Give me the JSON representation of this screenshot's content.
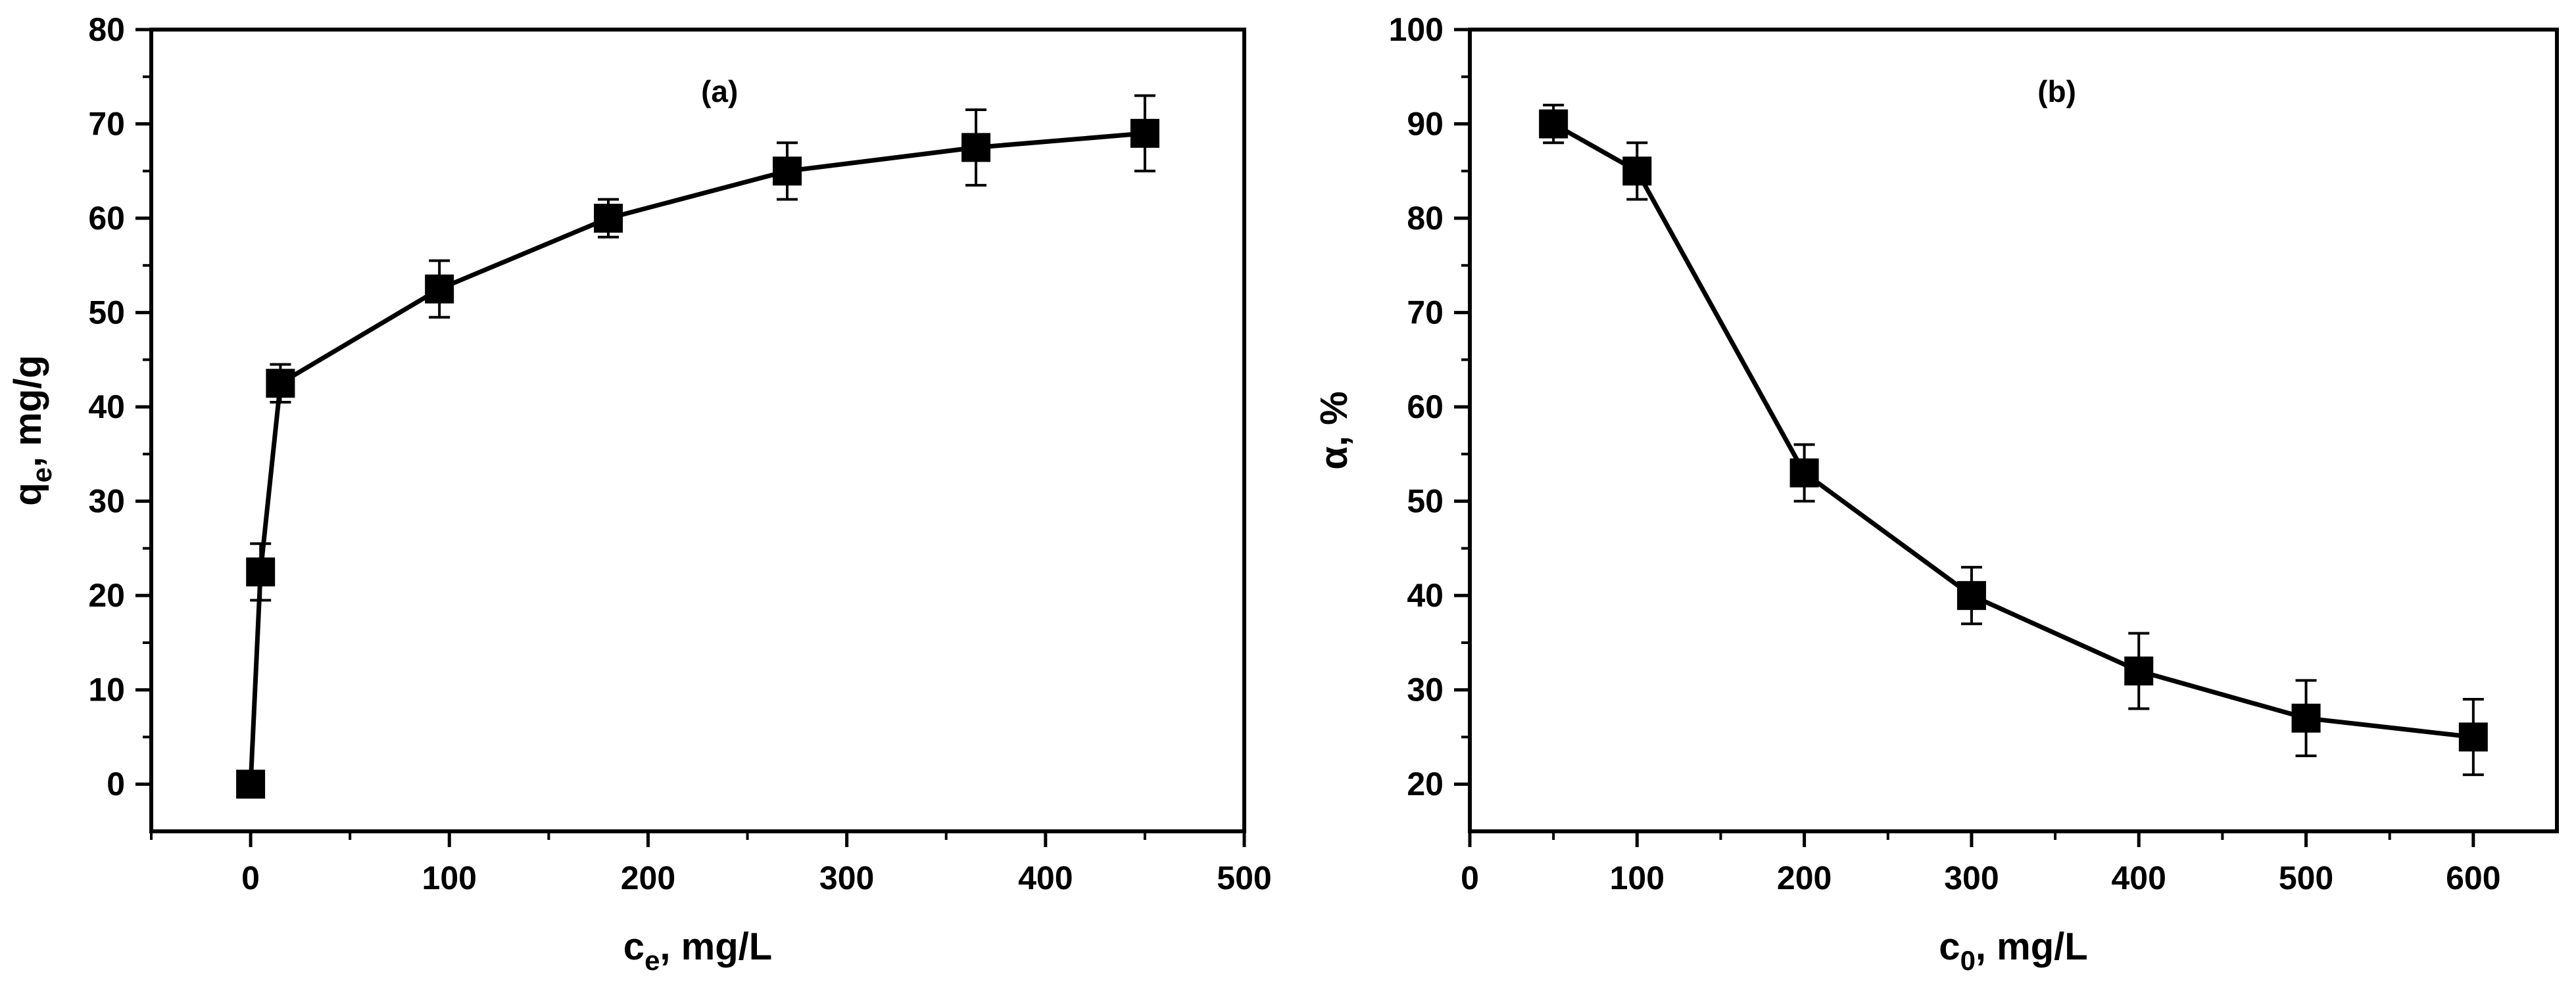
{
  "chart_data": [
    {
      "type": "line",
      "panel_label": "(a)",
      "xlabel_main": "c",
      "xlabel_sub": "e",
      "xlabel_rest": ", mg/L",
      "ylabel_main": "q",
      "ylabel_sub": "e",
      "ylabel_rest": ", mg/g",
      "xlim": [
        -50,
        500
      ],
      "ylim": [
        -5,
        80
      ],
      "xticks": [
        0,
        100,
        200,
        300,
        400,
        500
      ],
      "yticks": [
        0,
        10,
        20,
        30,
        40,
        50,
        60,
        70,
        80
      ],
      "xminor": [
        -50,
        50,
        150,
        250,
        350,
        450
      ],
      "yminor": [
        5,
        15,
        25,
        35,
        45,
        55,
        65,
        75
      ],
      "marker": "square",
      "color": "#000000",
      "series": [
        {
          "name": "qe",
          "x": [
            0,
            5,
            15,
            95,
            180,
            270,
            365,
            450
          ],
          "y": [
            0,
            22.5,
            42.5,
            52.5,
            60,
            65,
            67.5,
            69
          ],
          "err": [
            0,
            3,
            2,
            3,
            2,
            3,
            4,
            4
          ]
        }
      ]
    },
    {
      "type": "line",
      "panel_label": "(b)",
      "xlabel_main": "c",
      "xlabel_sub": "0",
      "xlabel_rest": ", mg/L",
      "ylabel_main": "α, %",
      "ylabel_sub": "",
      "ylabel_rest": "",
      "xlim": [
        0,
        650
      ],
      "ylim": [
        15,
        100
      ],
      "xticks": [
        0,
        100,
        200,
        300,
        400,
        500,
        600
      ],
      "yticks": [
        20,
        30,
        40,
        50,
        60,
        70,
        80,
        90,
        100
      ],
      "xminor": [
        50,
        150,
        250,
        350,
        450,
        550
      ],
      "yminor": [
        25,
        35,
        45,
        55,
        65,
        75,
        85,
        95
      ],
      "marker": "square",
      "color": "#000000",
      "series": [
        {
          "name": "alpha",
          "x": [
            50,
            100,
            200,
            300,
            400,
            500,
            600
          ],
          "y": [
            90,
            85,
            53,
            40,
            32,
            27,
            25
          ],
          "err": [
            2,
            3,
            3,
            3,
            4,
            4,
            4
          ]
        }
      ]
    }
  ]
}
